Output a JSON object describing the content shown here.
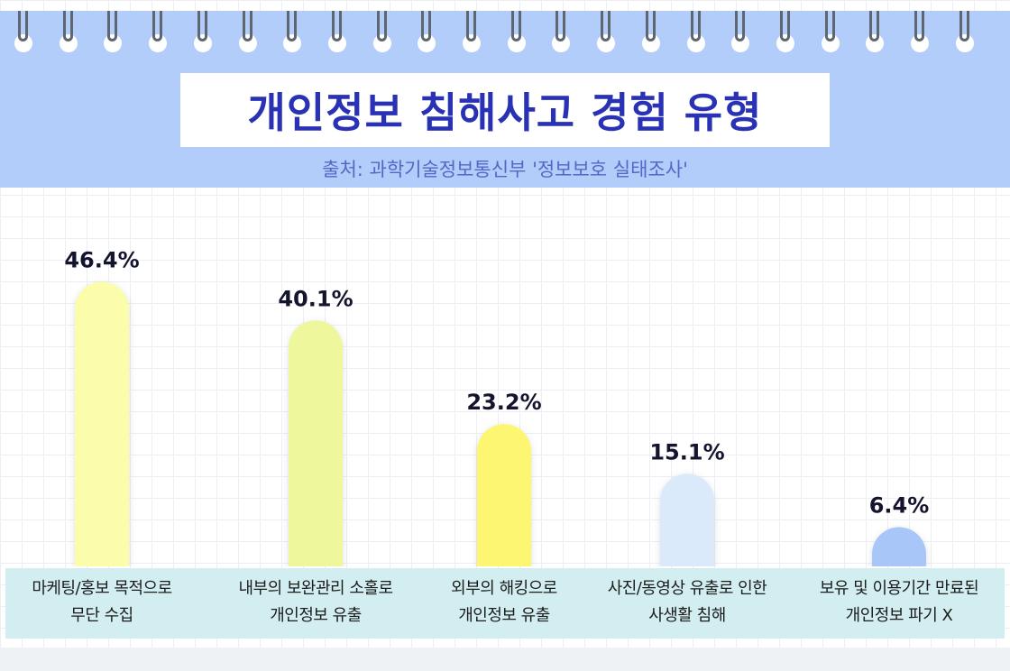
{
  "title": "개인정보 침해사고 경험 유형",
  "source": "출처: 과학기술정보통신부 '정보보호 실태조사'",
  "chart_data": {
    "type": "bar",
    "title": "개인정보 침해사고 경험 유형",
    "subtitle": "출처: 과학기술정보통신부 '정보보호 실태조사'",
    "unit": "%",
    "categories": [
      [
        "마케팅/홍보 목적으로",
        "무단 수집"
      ],
      [
        "내부의 보완관리 소홀로",
        "개인정보 유출"
      ],
      [
        "외부의 해킹으로",
        "개인정보 유출"
      ],
      [
        "사진/동영상 유출로 인한",
        "사생활 침해"
      ],
      [
        "보유 및 이용기간 만료된",
        "개인정보 파기 X"
      ]
    ],
    "values": [
      46.4,
      40.1,
      23.2,
      15.1,
      6.4
    ],
    "value_labels": [
      "46.4%",
      "40.1%",
      "23.2%",
      "15.1%",
      "6.4%"
    ],
    "colors": [
      "#fbfdaa",
      "#eef79b",
      "#fcf66f",
      "#dbeafa",
      "#a9c6f9"
    ],
    "ylim": [
      0,
      50
    ],
    "grid": true
  }
}
